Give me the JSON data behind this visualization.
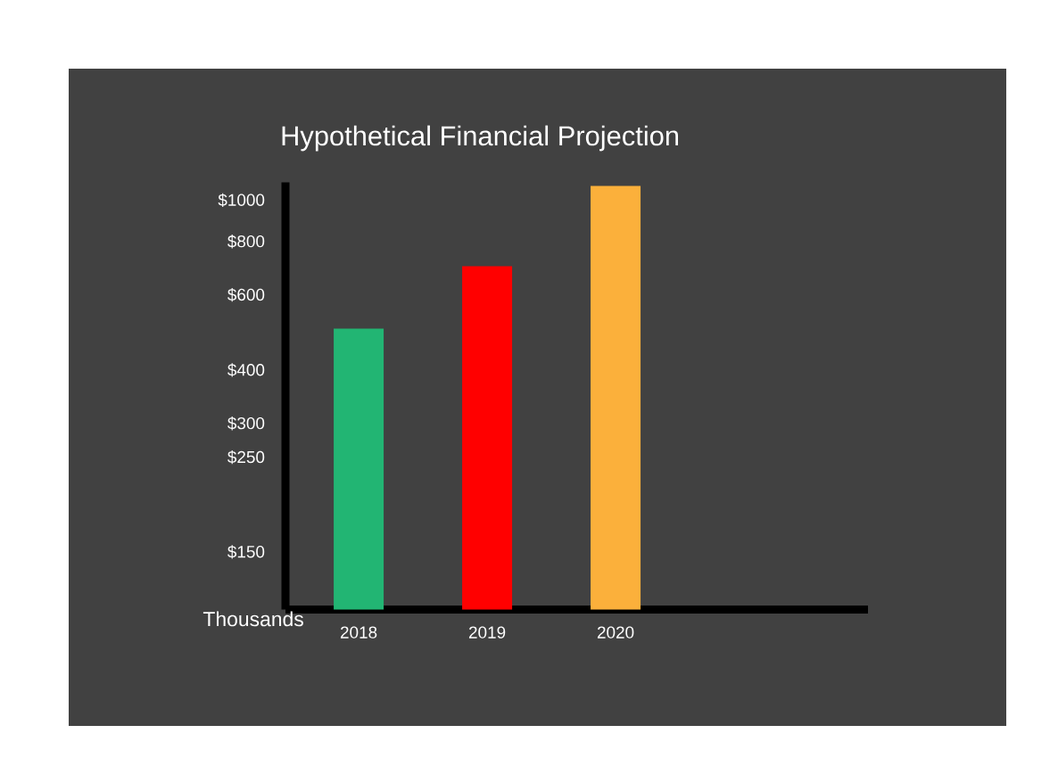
{
  "chart_data": {
    "type": "bar",
    "title": "Hypothetical Financial Projection",
    "ylabel": "Thousands",
    "categories": [
      "2018",
      "2019",
      "2020"
    ],
    "values": [
      500,
      700,
      1080
    ],
    "colors": [
      "#22b573",
      "#ff0000",
      "#fbb03b"
    ],
    "log": "y",
    "ylim": [
      110,
      1100
    ],
    "yticks": [
      {
        "value": 150,
        "label": "$150"
      },
      {
        "value": 250,
        "label": "$250"
      },
      {
        "value": 300,
        "label": "$300"
      },
      {
        "value": 400,
        "label": "$400"
      },
      {
        "value": 600,
        "label": "$600"
      },
      {
        "value": 800,
        "label": "$800"
      },
      {
        "value": 1000,
        "label": "$1000"
      }
    ]
  }
}
